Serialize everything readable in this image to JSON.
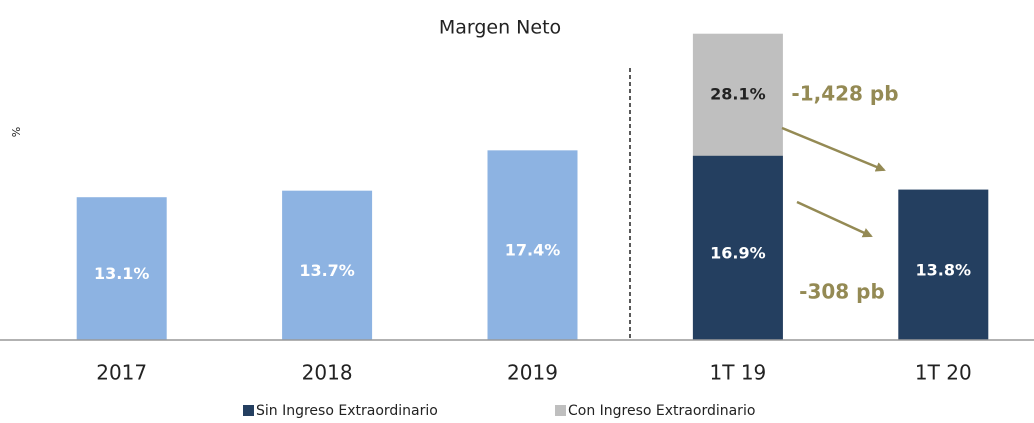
{
  "chart_data": {
    "type": "bar",
    "title": "Margen Neto",
    "y_label": "%",
    "categories": [
      "2017",
      "2018",
      "2019",
      "1T 19",
      "1T 20"
    ],
    "series": [
      {
        "name": "Sin Ingreso Extraordinario",
        "color": "#243F60",
        "colors": [
          "#8DB3E2",
          "#8DB3E2",
          "#8DB3E2",
          "#243F60",
          "#243F60"
        ],
        "values": [
          13.1,
          13.7,
          17.4,
          16.9,
          13.8
        ],
        "value_labels": [
          "13.1%",
          "13.7%",
          "17.4%",
          "16.9%",
          "13.8%"
        ]
      },
      {
        "name": "Con Ingreso Extraordinario",
        "color": "#BFBFBF",
        "values": [
          null,
          null,
          null,
          28.1,
          null
        ],
        "value_labels": [
          null,
          null,
          null,
          "28.1%",
          null
        ]
      }
    ],
    "ylim": [
      0,
      30
    ],
    "annotations": [
      "-1,428 pb",
      "-308 pb"
    ]
  }
}
